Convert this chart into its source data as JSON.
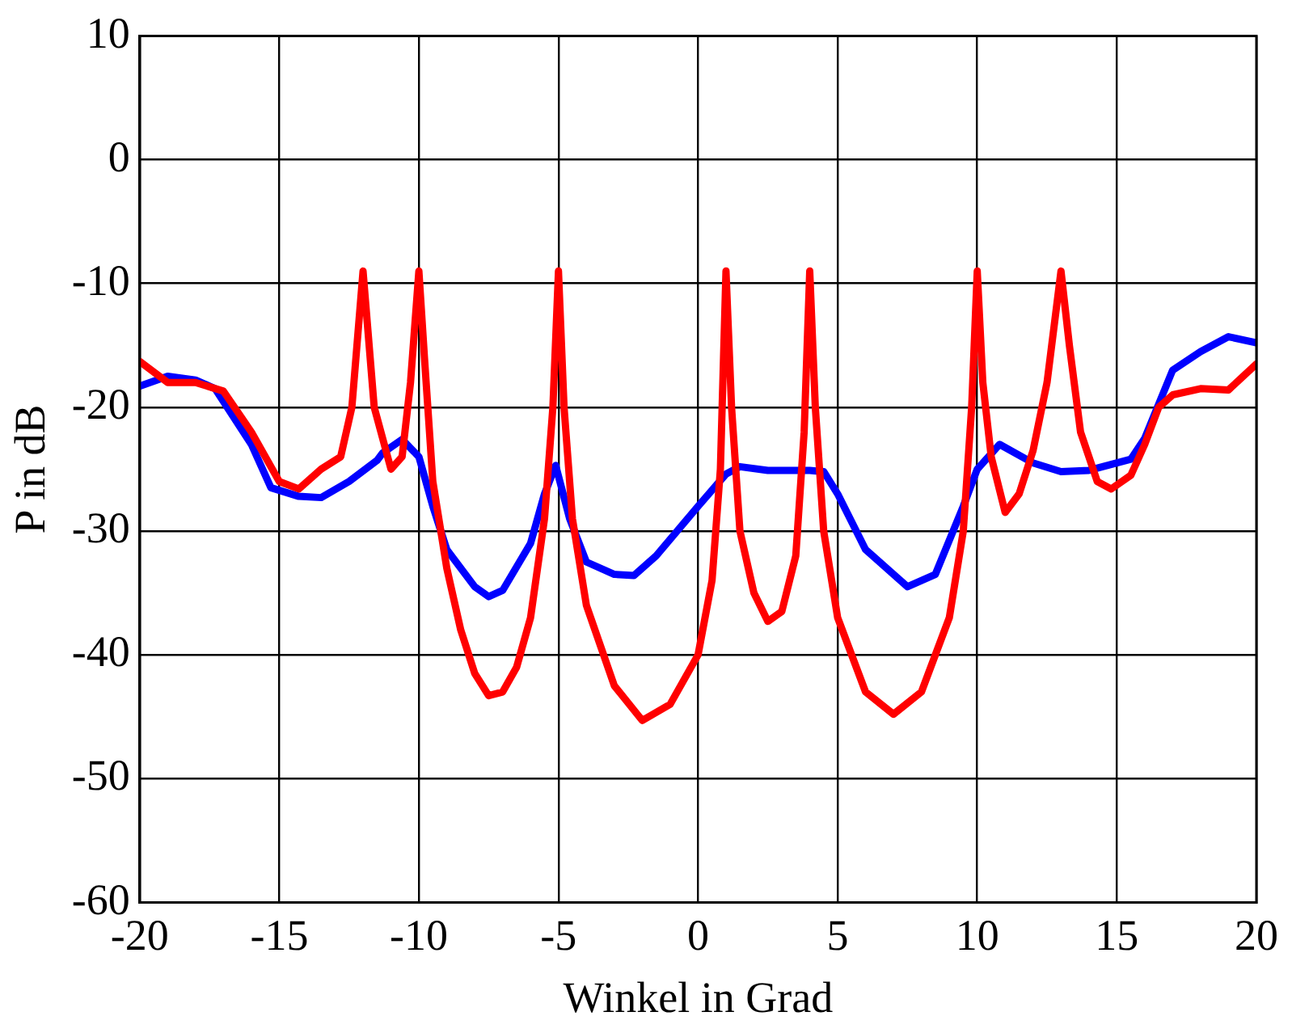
{
  "chart_data": {
    "type": "line",
    "xlabel": "Winkel in Grad",
    "ylabel": "P in dB",
    "xlim": [
      -20,
      20
    ],
    "ylim": [
      -60,
      10
    ],
    "xticks": [
      -20,
      -15,
      -10,
      -5,
      0,
      5,
      10,
      15,
      20
    ],
    "yticks": [
      -60,
      -50,
      -40,
      -30,
      -20,
      -10,
      0,
      10
    ],
    "grid": true,
    "legend": false,
    "marker": "none",
    "line_style": "solid",
    "series": [
      {
        "color": "#ff0000",
        "x": [
          -20,
          -19,
          -18,
          -17,
          -16,
          -15,
          -14.3,
          -13.5,
          -12.8,
          -12.4,
          -12,
          -11.6,
          -11,
          -10.6,
          -10.3,
          -10,
          -9.8,
          -9.5,
          -9,
          -8.5,
          -8,
          -7.5,
          -7,
          -6.5,
          -6,
          -5.5,
          -5.2,
          -5,
          -4.8,
          -4.5,
          -4,
          -3,
          -2,
          -1,
          0,
          0.5,
          0.8,
          1,
          1.2,
          1.5,
          2,
          2.5,
          3,
          3.5,
          3.8,
          4,
          4.2,
          4.5,
          5,
          6,
          7,
          8,
          9,
          9.5,
          9.8,
          10,
          10.2,
          10.5,
          11,
          11.5,
          12,
          12.5,
          13,
          13.3,
          13.7,
          14.3,
          14.8,
          15.5,
          16,
          16.5,
          17,
          18,
          19,
          20
        ],
        "values": [
          -16.3,
          -18,
          -18,
          -18.7,
          -22,
          -26,
          -26.6,
          -25,
          -24,
          -20,
          -9,
          -20,
          -25,
          -24,
          -18,
          -9,
          -16,
          -26,
          -33,
          -38,
          -41.5,
          -43.3,
          -43,
          -41,
          -37,
          -29,
          -20,
          -9,
          -20,
          -29,
          -36,
          -42.5,
          -45.3,
          -44,
          -40,
          -34,
          -25,
          -9,
          -20,
          -30,
          -35,
          -37.3,
          -36.5,
          -32,
          -22,
          -9,
          -20,
          -30,
          -37,
          -43,
          -44.8,
          -43,
          -37,
          -30,
          -20,
          -9,
          -18,
          -24,
          -28.5,
          -27,
          -23.5,
          -18,
          -9,
          -15,
          -22,
          -26,
          -26.6,
          -25.5,
          -23,
          -20,
          -19,
          -18.5,
          -18.6,
          -16.5
        ]
      },
      {
        "color": "#0000ff",
        "x": [
          -20,
          -19,
          -18,
          -17.3,
          -16,
          -15.3,
          -14.3,
          -13.5,
          -12.5,
          -11.5,
          -11.3,
          -10.6,
          -10,
          -9.5,
          -9,
          -8,
          -7.5,
          -7,
          -6,
          -5.5,
          -5.1,
          -4.6,
          -4,
          -3,
          -2.3,
          -1.5,
          0,
          1,
          1.5,
          2.5,
          4,
          4.5,
          5,
          6,
          7.5,
          8.5,
          9.5,
          10,
          10.8,
          12,
          13,
          14,
          15.5,
          16,
          17,
          18,
          19,
          20
        ],
        "values": [
          -18.3,
          -17.5,
          -17.8,
          -18.5,
          -23,
          -26.5,
          -27.2,
          -27.3,
          -26,
          -24.3,
          -23.7,
          -22.6,
          -24,
          -28,
          -31.5,
          -34.5,
          -35.3,
          -34.8,
          -31,
          -27,
          -24.7,
          -29,
          -32.5,
          -33.5,
          -33.6,
          -32,
          -28,
          -25.4,
          -24.8,
          -25.1,
          -25.1,
          -25.2,
          -27,
          -31.5,
          -34.5,
          -33.5,
          -28,
          -25,
          -23,
          -24.5,
          -25.2,
          -25.1,
          -24.2,
          -22.5,
          -17,
          -15.5,
          -14.3,
          -14.8
        ]
      }
    ]
  }
}
